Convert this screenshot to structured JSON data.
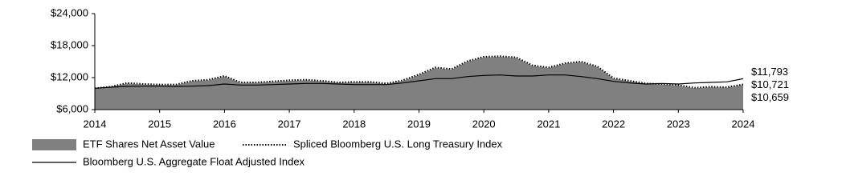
{
  "chart_data": {
    "type": "area-line",
    "x": [
      2014,
      2014.25,
      2014.5,
      2014.75,
      2015,
      2015.25,
      2015.5,
      2015.75,
      2016,
      2016.25,
      2016.5,
      2016.75,
      2017,
      2017.25,
      2017.5,
      2017.75,
      2018,
      2018.25,
      2018.5,
      2018.75,
      2019,
      2019.25,
      2019.5,
      2019.75,
      2020,
      2020.25,
      2020.5,
      2020.75,
      2021,
      2021.25,
      2021.5,
      2021.75,
      2022,
      2022.25,
      2022.5,
      2022.75,
      2023,
      2023.25,
      2023.5,
      2023.75,
      2024
    ],
    "xlim": [
      2014,
      2024
    ],
    "xticks": [
      2014,
      2015,
      2016,
      2017,
      2018,
      2019,
      2020,
      2021,
      2022,
      2023,
      2024
    ],
    "ylim": [
      6000,
      24000
    ],
    "yticks": [
      {
        "value": 6000,
        "label": "$6,000"
      },
      {
        "value": 12000,
        "label": "$12,000"
      },
      {
        "value": 18000,
        "label": "$18,000"
      },
      {
        "value": 24000,
        "label": "$24,000"
      }
    ],
    "series": [
      {
        "name": "ETF Shares Net Asset Value",
        "style": "area",
        "color": "#808080",
        "values": [
          10000,
          10300,
          10900,
          10700,
          10600,
          10600,
          11300,
          11500,
          12200,
          11000,
          11000,
          11200,
          11400,
          11500,
          11300,
          11000,
          11100,
          11100,
          10800,
          11400,
          12500,
          13800,
          13500,
          15000,
          15800,
          15900,
          15700,
          14200,
          13800,
          14600,
          14900,
          14000,
          11800,
          11300,
          10800,
          10700,
          10500,
          10000,
          10200,
          10100,
          10659
        ],
        "value_labels": [
          null,
          null,
          null,
          null,
          null,
          null,
          null,
          null,
          null,
          null,
          null,
          null,
          null,
          null,
          null,
          null,
          null,
          null,
          null,
          null,
          null,
          null,
          null,
          null,
          null,
          null,
          null,
          null,
          null,
          null,
          null,
          null,
          null,
          null,
          null,
          null,
          null,
          null,
          null,
          null,
          "$10,659"
        ]
      },
      {
        "name": "Spliced Bloomberg U.S. Long Treasury Index",
        "style": "dotted",
        "color": "#000000",
        "values": [
          10000,
          10300,
          11000,
          10800,
          10700,
          10700,
          11400,
          11600,
          12300,
          11100,
          11100,
          11300,
          11500,
          11600,
          11400,
          11100,
          11200,
          11200,
          10900,
          11500,
          12600,
          13900,
          13600,
          15100,
          15900,
          16000,
          15800,
          14300,
          13900,
          14700,
          15000,
          14100,
          11900,
          11400,
          10900,
          10800,
          10600,
          10100,
          10300,
          10200,
          10721
        ],
        "value_labels": [
          null,
          null,
          null,
          null,
          null,
          null,
          null,
          null,
          null,
          null,
          null,
          null,
          null,
          null,
          null,
          null,
          null,
          null,
          null,
          null,
          null,
          null,
          null,
          null,
          null,
          null,
          null,
          null,
          null,
          null,
          null,
          null,
          null,
          null,
          null,
          null,
          null,
          null,
          null,
          null,
          "$10,721"
        ]
      },
      {
        "name": "Bloomberg U.S. Aggregate Float Adjusted Index",
        "style": "solid",
        "color": "#000000",
        "values": [
          10000,
          10200,
          10350,
          10400,
          10400,
          10350,
          10400,
          10500,
          10800,
          10600,
          10600,
          10700,
          10800,
          10900,
          10900,
          10800,
          10700,
          10700,
          10700,
          11000,
          11400,
          11800,
          11800,
          12200,
          12400,
          12500,
          12300,
          12300,
          12500,
          12500,
          12200,
          11800,
          11300,
          11000,
          10800,
          10900,
          10800,
          11000,
          11100,
          11200,
          11793
        ],
        "value_labels": [
          null,
          null,
          null,
          null,
          null,
          null,
          null,
          null,
          null,
          null,
          null,
          null,
          null,
          null,
          null,
          null,
          null,
          null,
          null,
          null,
          null,
          null,
          null,
          null,
          null,
          null,
          null,
          null,
          null,
          null,
          null,
          null,
          null,
          null,
          null,
          null,
          null,
          null,
          null,
          null,
          "$11,793"
        ]
      }
    ]
  }
}
